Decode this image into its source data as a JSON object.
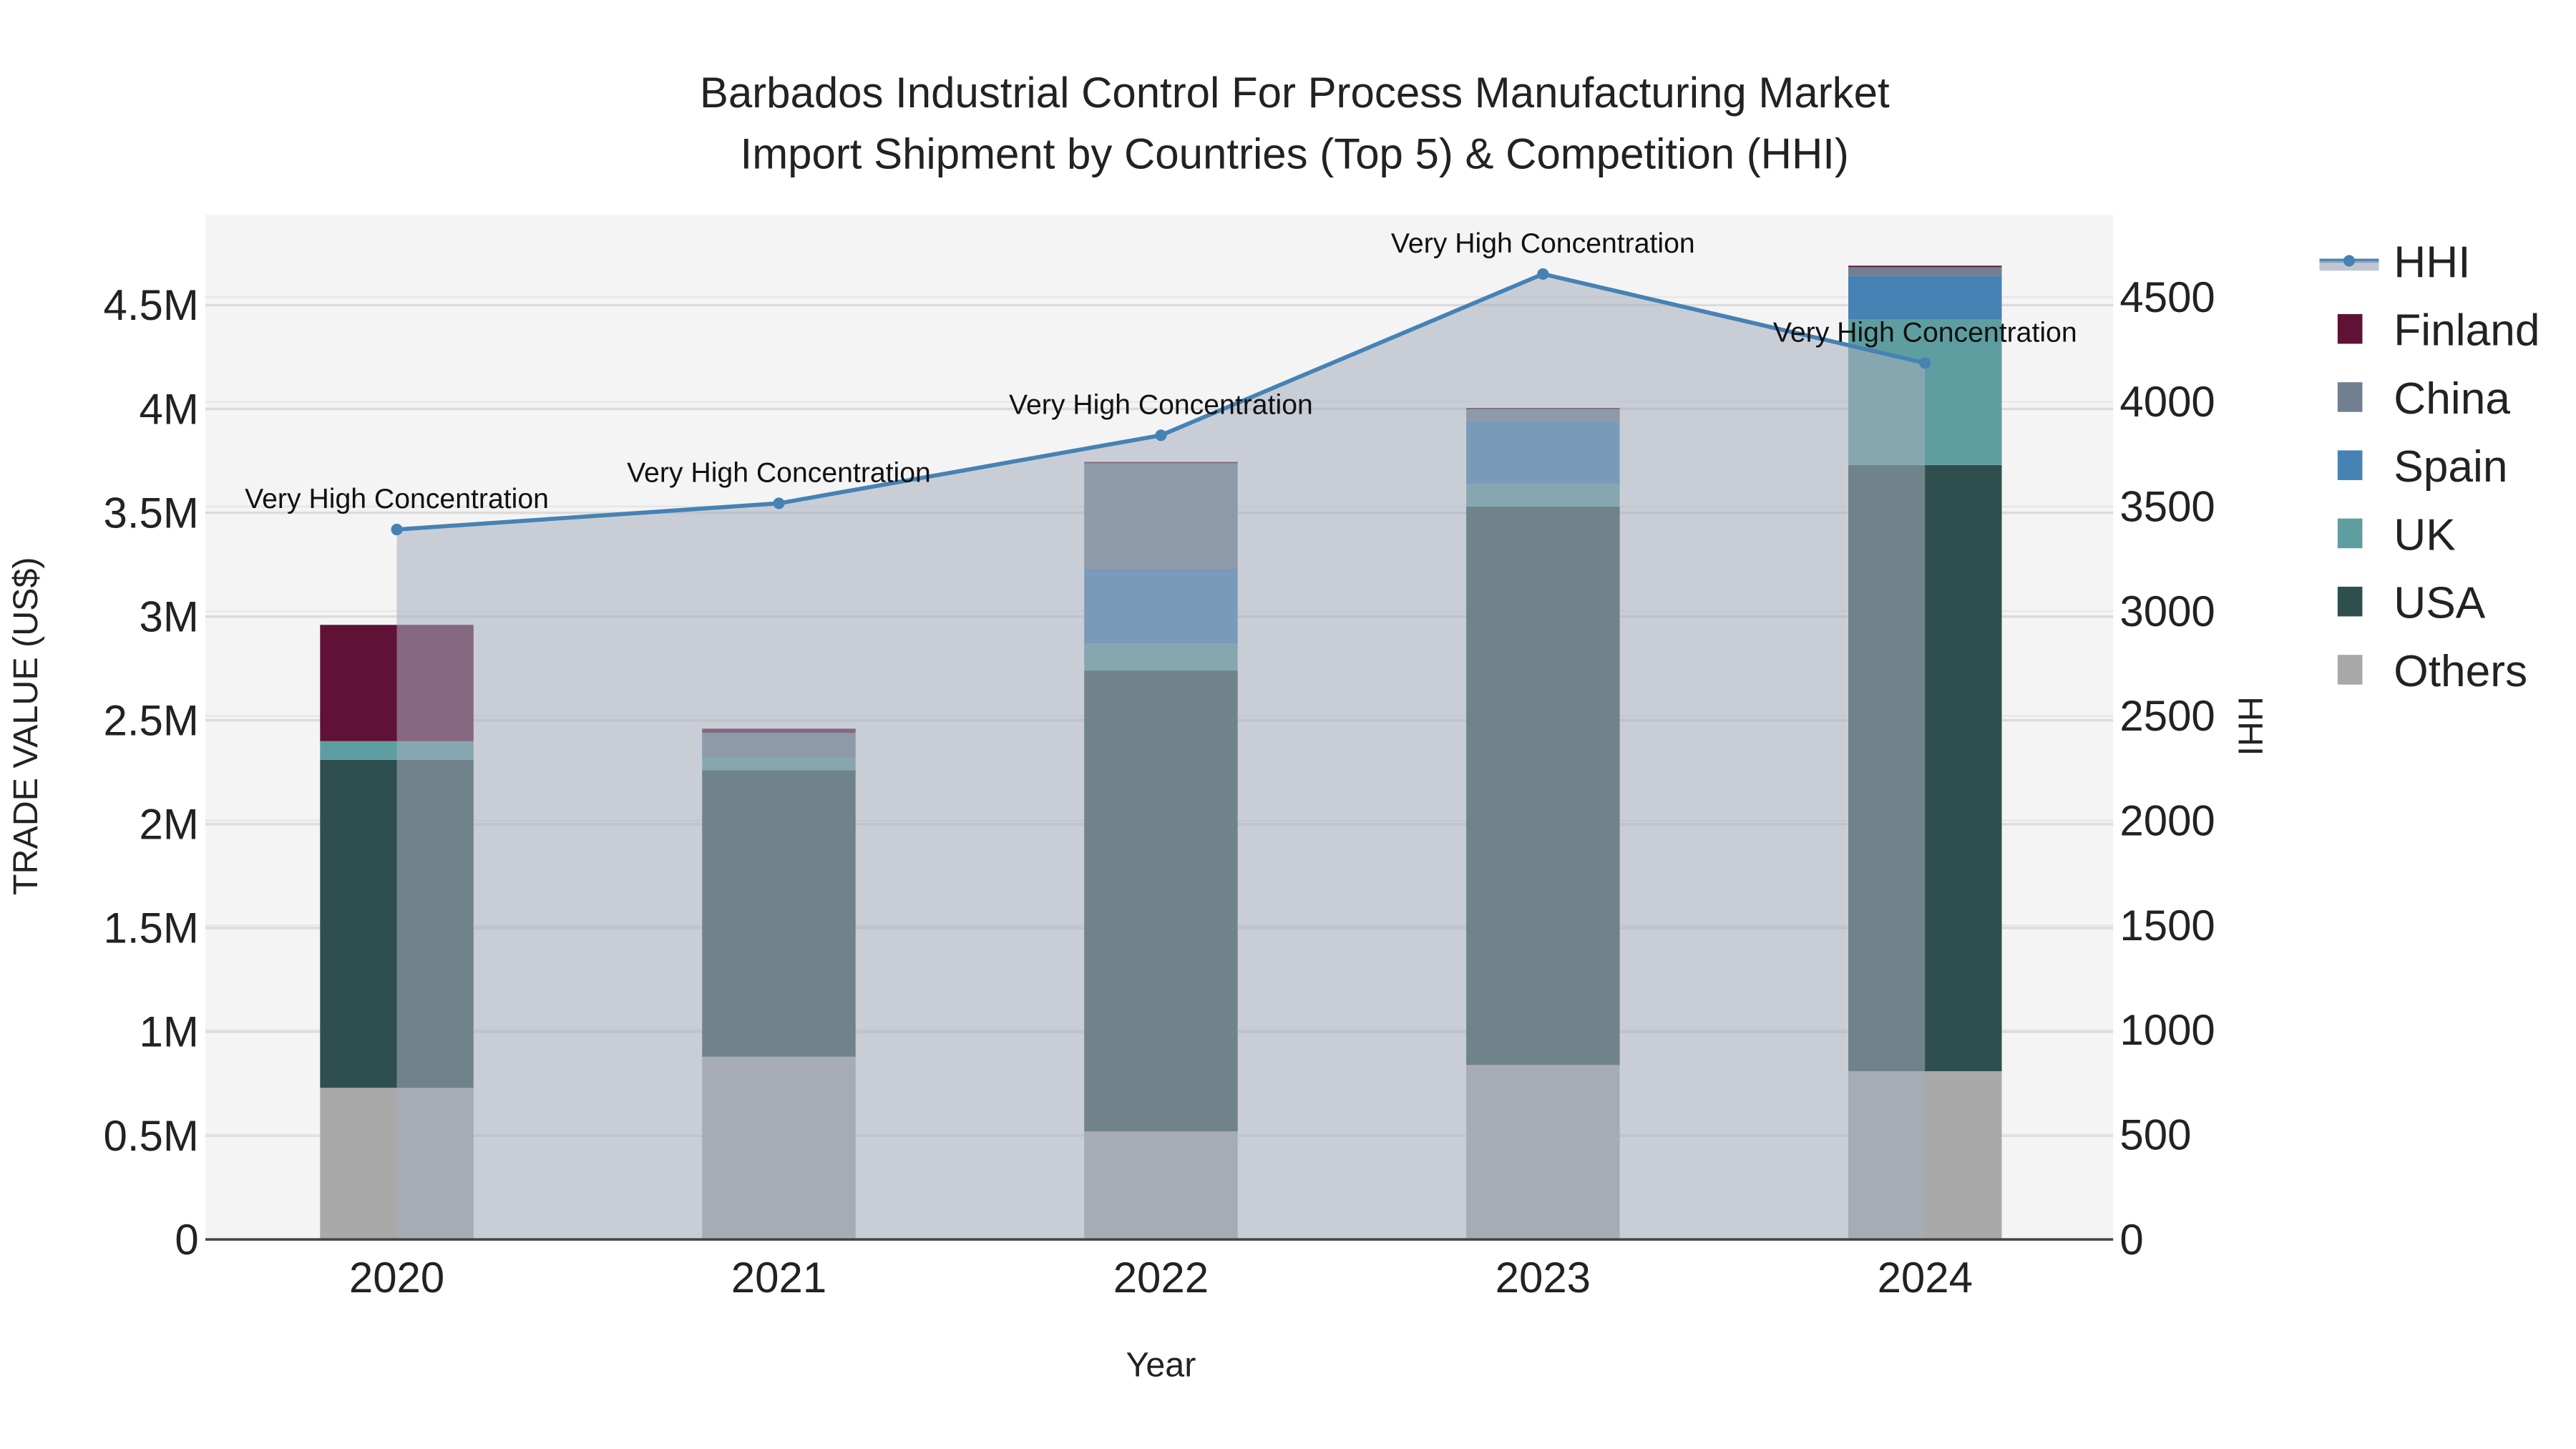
{
  "chart_data": {
    "type": "bar",
    "title_line1": "Barbados Industrial Control For Process Manufacturing Market",
    "title_line2": "Import Shipment by Countries (Top 5) & Competition (HHI)",
    "xlabel": "Year",
    "ylabel": "TRADE VALUE (US$)",
    "y2label": "HHI",
    "categories": [
      "2020",
      "2021",
      "2022",
      "2023",
      "2024"
    ],
    "ylim": [
      0,
      4900000
    ],
    "y2lim": [
      0,
      4880
    ],
    "yticks": [
      0,
      500000,
      1000000,
      1500000,
      2000000,
      2500000,
      3000000,
      3500000,
      4000000,
      4500000
    ],
    "ytick_labels": [
      "0",
      "0.5M",
      "1M",
      "1.5M",
      "2M",
      "2.5M",
      "3M",
      "3.5M",
      "4M",
      "4.5M"
    ],
    "y2ticks": [
      0,
      500,
      1000,
      1500,
      2000,
      2500,
      3000,
      3500,
      4000,
      4500
    ],
    "y2tick_labels": [
      "0",
      "500",
      "1000",
      "1500",
      "2000",
      "2500",
      "3000",
      "3500",
      "4000",
      "4500"
    ],
    "series": [
      {
        "name": "Others",
        "color": "#a9a9a9",
        "values": [
          730000,
          880000,
          520000,
          840000,
          810000
        ]
      },
      {
        "name": "USA",
        "color": "#2f4f4f",
        "values": [
          1580000,
          1380000,
          2220000,
          2690000,
          2920000
        ]
      },
      {
        "name": "UK",
        "color": "#5f9ea0",
        "values": [
          90000,
          60000,
          130000,
          110000,
          700000
        ]
      },
      {
        "name": "Spain",
        "color": "#4682b4",
        "values": [
          0,
          0,
          360000,
          300000,
          210000
        ]
      },
      {
        "name": "China",
        "color": "#708090",
        "values": [
          0,
          120000,
          510000,
          60000,
          45000
        ]
      },
      {
        "name": "Finland",
        "color": "#5f1235",
        "values": [
          560000,
          20000,
          5000,
          5000,
          5000
        ]
      }
    ],
    "hhi": {
      "name": "HHI",
      "color": "#4682b4",
      "values": [
        3390,
        3515,
        3840,
        4610,
        4185
      ]
    },
    "annotations": [
      "Very High Concentration",
      "Very High Concentration",
      "Very High Concentration",
      "Very High Concentration",
      "Very High Concentration"
    ],
    "legend": [
      "HHI",
      "Finland",
      "China",
      "Spain",
      "UK",
      "USA",
      "Others"
    ],
    "legend_position": "right",
    "grid": true
  }
}
